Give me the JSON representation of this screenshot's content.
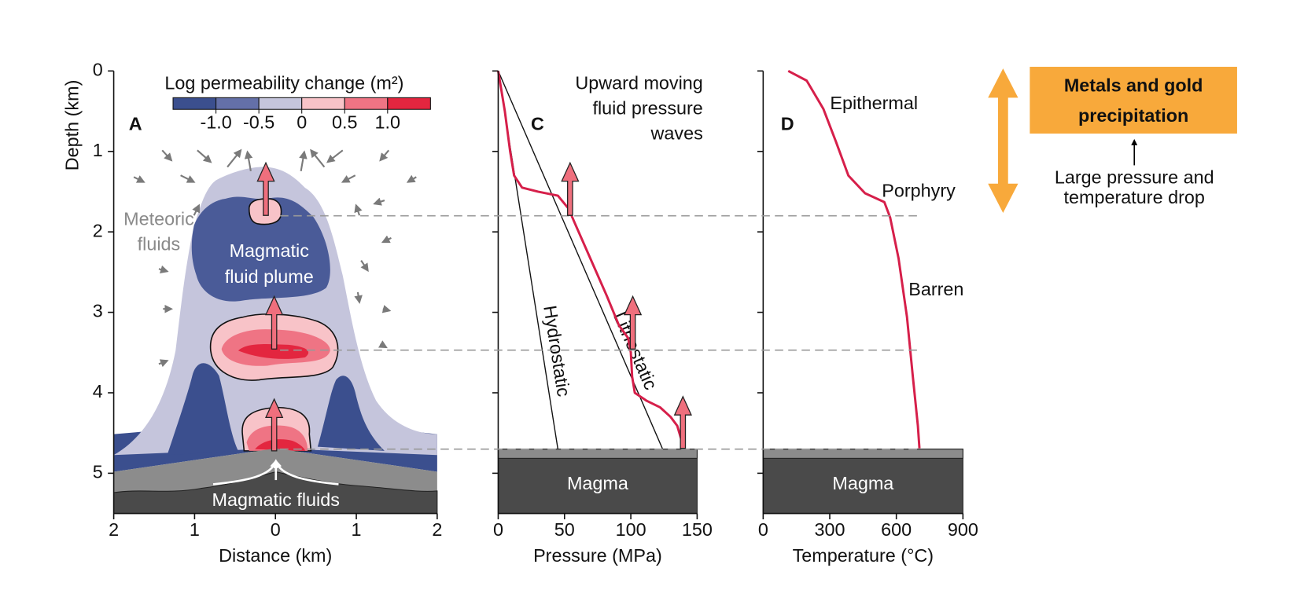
{
  "chart_data": [
    {
      "type": "contour",
      "ylabel": "Depth (km)",
      "xlabel": "Distance (km)",
      "xlim": [
        -2,
        2
      ],
      "xticks": [
        {
          "value": -2,
          "label": "2"
        },
        {
          "value": -1,
          "label": "1"
        },
        0,
        1,
        2
      ],
      "ylim": [
        5.5,
        0
      ],
      "yticks": [
        0,
        1,
        2,
        3,
        4,
        5
      ],
      "colorbar": {
        "title": "Log permeability change (m²)",
        "lim": [
          -1.5,
          1.5
        ],
        "ticks": [
          {
            "value": -1,
            "label": "-1.0"
          },
          -0.5,
          0,
          0.5,
          {
            "value": 1,
            "label": "1.0"
          }
        ],
        "colors": [
          "#3b4f8e",
          "#6470a8",
          "#c5c5dc",
          "#f8c3c8",
          "#ef7484",
          "#e3263f"
        ]
      },
      "annotations": [
        "A",
        [
          "Meteoric",
          "fluids"
        ],
        [
          "Magmatic",
          "fluid plume"
        ],
        "Magmatic fluids"
      ]
    },
    {
      "type": "line",
      "xlabel": "Pressure (MPa)",
      "xlim": [
        0,
        150
      ],
      "xticks": [
        0,
        50,
        100,
        150
      ],
      "ylim": [
        5.5,
        0
      ],
      "yticks": [
        0,
        1,
        2,
        3,
        4,
        5
      ],
      "series": [
        {
          "name": "Hydrostatic",
          "color": "#111111",
          "x": [
            0,
            45
          ],
          "values": [
            0,
            4.7
          ]
        },
        {
          "name": "Lithostatic",
          "color": "#111111",
          "x": [
            0,
            124
          ],
          "values": [
            0,
            4.7
          ]
        },
        {
          "color": "#d61f4a",
          "x": [
            0,
            5,
            9,
            12,
            18,
            30,
            45,
            53,
            58,
            70,
            82,
            91,
            98,
            100,
            101,
            103,
            112,
            122,
            130,
            135,
            140
          ],
          "values": [
            0,
            0.5,
            1.0,
            1.3,
            1.45,
            1.5,
            1.55,
            1.71,
            1.9,
            2.35,
            2.8,
            3.16,
            3.32,
            3.5,
            3.8,
            4.0,
            4.1,
            4.18,
            4.3,
            4.41,
            4.69
          ]
        }
      ],
      "magma_top": 4.7,
      "magma_label": "Magma",
      "annotations": [
        "C",
        [
          "Upward moving",
          "fluid pressure",
          "waves"
        ]
      ]
    },
    {
      "type": "line",
      "xlabel": "Temperature (°C)",
      "xlim": [
        0,
        900
      ],
      "xticks": [
        0,
        300,
        600,
        900
      ],
      "ylim": [
        5.5,
        0
      ],
      "yticks": [
        0,
        1,
        2,
        3,
        4,
        5
      ],
      "series": [
        {
          "color": "#d61f4a",
          "x": [
            113,
            196,
            271,
            328,
            384,
            459,
            546,
            572,
            610,
            648,
            674,
            697,
            704
          ],
          "values": [
            0,
            0.12,
            0.47,
            0.88,
            1.3,
            1.52,
            1.63,
            1.82,
            2.33,
            3.06,
            3.79,
            4.41,
            4.69
          ]
        }
      ],
      "magma_top": 4.7,
      "magma_label": "Magma",
      "hlines": [
        1.8,
        3.47,
        4.7
      ],
      "annotations": [
        "D",
        "Epithermal",
        "Porphyry",
        "Barren"
      ]
    }
  ],
  "side_note": {
    "box_lines": [
      "Metals and gold",
      "precipitation"
    ],
    "caption_lines": [
      "Large pressure and",
      "temperature drop"
    ]
  }
}
